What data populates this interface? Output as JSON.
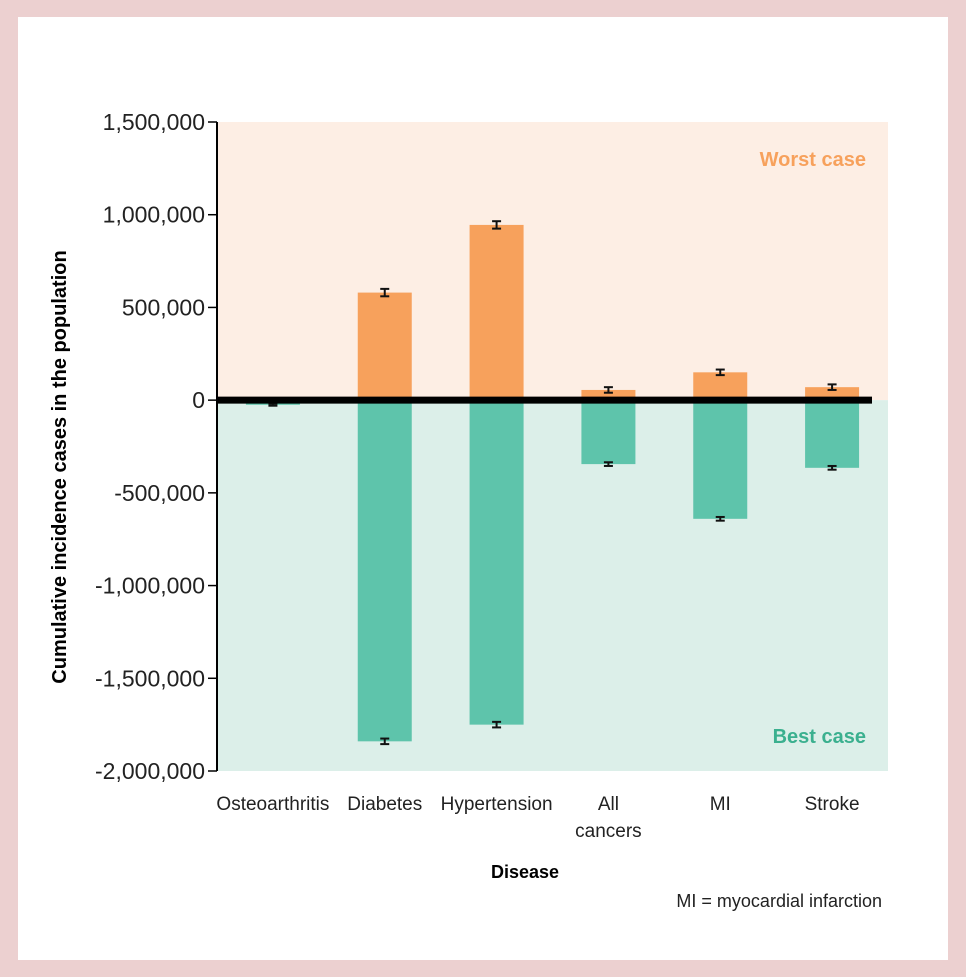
{
  "chart_data": {
    "type": "bar",
    "title": "",
    "xlabel": "Disease",
    "ylabel": "Cumulative incidence cases in the population",
    "ylim": [
      -2000000,
      1500000
    ],
    "yticks": [
      1500000,
      1000000,
      500000,
      0,
      -500000,
      -1000000,
      -1500000,
      -2000000
    ],
    "ytick_labels": [
      "1,500,000",
      "1,000,000",
      "500,000",
      "0",
      "-500,000",
      "-1,000,000",
      "-1,500,000",
      "-2,000,000"
    ],
    "categories": [
      {
        "label": "Osteoarthritis",
        "lines": [
          "Osteoarthritis"
        ]
      },
      {
        "label": "Diabetes",
        "lines": [
          "Diabetes"
        ]
      },
      {
        "label": "Hypertension",
        "lines": [
          "Hypertension"
        ]
      },
      {
        "label": "All cancers",
        "lines": [
          "All",
          "cancers"
        ]
      },
      {
        "label": "MI",
        "lines": [
          "MI"
        ]
      },
      {
        "label": "Stroke",
        "lines": [
          "Stroke"
        ]
      }
    ],
    "series": [
      {
        "name": "Worst case",
        "color": "#f7a15c",
        "values": [
          -5000,
          580000,
          945000,
          55000,
          150000,
          70000
        ],
        "errors": [
          3000,
          20000,
          20000,
          15000,
          15000,
          15000
        ]
      },
      {
        "name": "Best case",
        "color": "#5ec4ab",
        "values": [
          -25000,
          -1840000,
          -1750000,
          -345000,
          -640000,
          -365000
        ],
        "errors": [
          5000,
          15000,
          15000,
          10000,
          10000,
          10000
        ]
      }
    ],
    "regions": {
      "upper": {
        "label": "Worst case",
        "fill": "#fdeee4",
        "label_color": "#f7a15c"
      },
      "lower": {
        "label": "Best case",
        "fill": "#dcefe9",
        "label_color": "#3bb08f"
      }
    },
    "footnote": "MI = myocardial infarction",
    "grid": false
  }
}
